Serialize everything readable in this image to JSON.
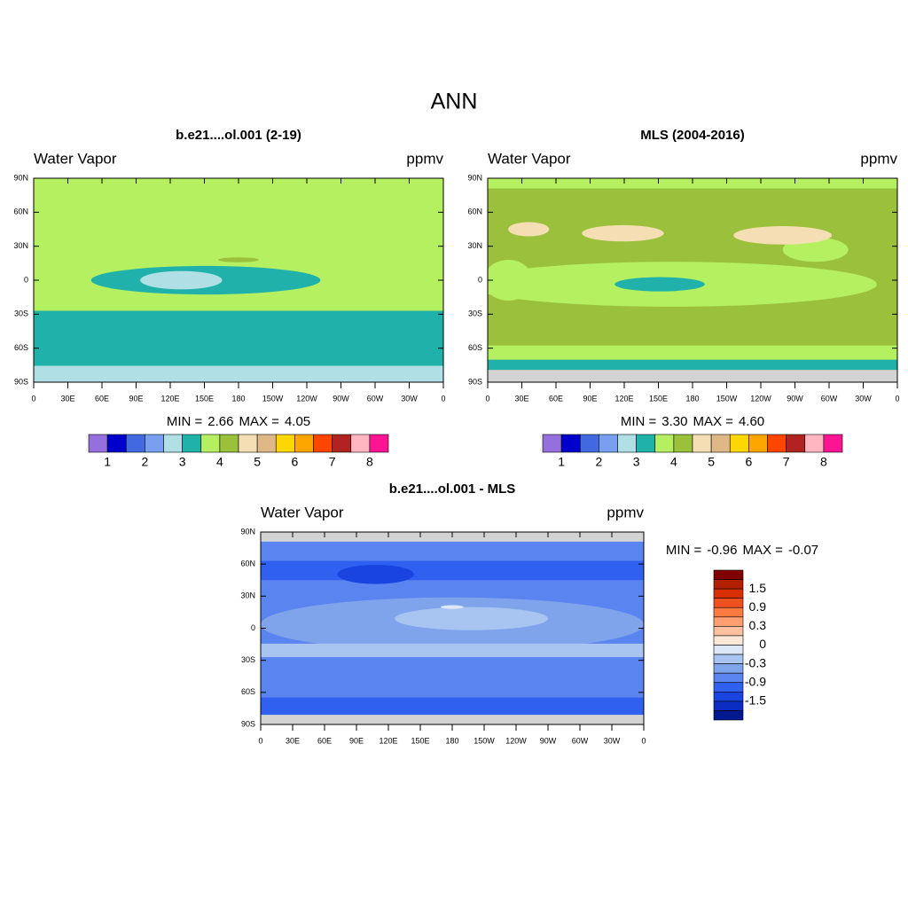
{
  "title": "ANN",
  "lat_ticks": [
    "90N",
    "60N",
    "30N",
    "0",
    "30S",
    "60S",
    "90S"
  ],
  "lon_ticks": [
    "0",
    "30E",
    "60E",
    "90E",
    "120E",
    "150E",
    "180",
    "150W",
    "120W",
    "90W",
    "60W",
    "30W",
    "0"
  ],
  "panels": [
    {
      "title": "b.e21....ol.001 (2-19)",
      "left_label": "Water Vapor",
      "right_label": "ppmv",
      "min_label": "MIN =",
      "min": "2.66",
      "max_label": "MAX =",
      "max": "4.05",
      "colorbar": {
        "colors": [
          "#9370db",
          "#0000cd",
          "#4169e1",
          "#7b9ff0",
          "#b0e0e6",
          "#20b2aa",
          "#b4f060",
          "#9ac03c",
          "#f5deb3",
          "#deb887",
          "#ffd700",
          "#ffa500",
          "#ff4500",
          "#b22222",
          "#ffb6c1",
          "#ff1493"
        ],
        "labels": [
          1,
          2,
          3,
          4,
          5,
          6,
          7,
          8
        ]
      }
    },
    {
      "title": "MLS (2004-2016)",
      "left_label": "Water Vapor",
      "right_label": "ppmv",
      "min_label": "MIN =",
      "min": "3.30",
      "max_label": "MAX =",
      "max": "4.60",
      "colorbar": {
        "colors": [
          "#9370db",
          "#0000cd",
          "#4169e1",
          "#7b9ff0",
          "#b0e0e6",
          "#20b2aa",
          "#b4f060",
          "#9ac03c",
          "#f5deb3",
          "#deb887",
          "#ffd700",
          "#ffa500",
          "#ff4500",
          "#b22222",
          "#ffb6c1",
          "#ff1493"
        ],
        "labels": [
          1,
          2,
          3,
          4,
          5,
          6,
          7,
          8
        ]
      }
    },
    {
      "title": "b.e21....ol.001 - MLS",
      "left_label": "Water Vapor",
      "right_label": "ppmv",
      "min_label": "MIN =",
      "min": "-0.96",
      "max_label": "MAX =",
      "max": "-0.07",
      "colorbar": {
        "colors": [
          "#800000",
          "#b22000",
          "#d83000",
          "#f05020",
          "#ff7a40",
          "#ff9e70",
          "#ffc0a0",
          "#fde8d8",
          "#dce8f8",
          "#a8c4f0",
          "#80a4ec",
          "#5a84f0",
          "#3060f0",
          "#1a44e0",
          "#0a2cc0",
          "#001890"
        ],
        "labels": [
          1.5,
          0.9,
          0.3,
          0,
          -0.3,
          -0.9,
          -1.5
        ]
      }
    }
  ]
}
